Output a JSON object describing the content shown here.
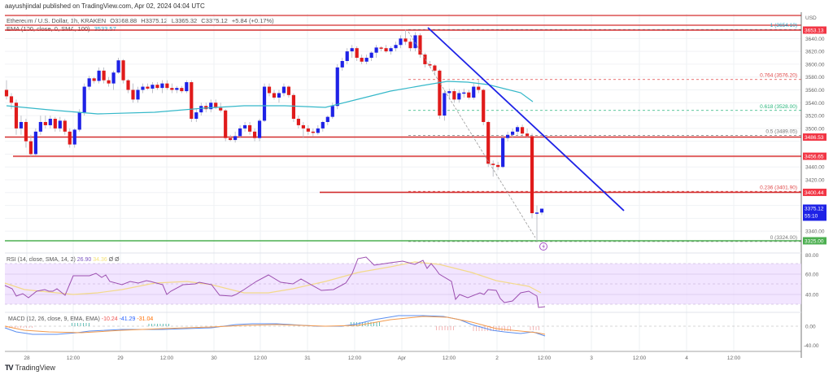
{
  "header": {
    "published": "aayushjindal published on TradingView.com, Apr 02, 2024 04:04 UTC"
  },
  "legend": {
    "symbol": "Ethereum / U.S. Dollar, 1h, KRAKEN",
    "open": "O3368.88",
    "high": "H3375.12",
    "low": "L3365.32",
    "close": "C3375.12",
    "change": "+5.84 (+0.17%)",
    "ema_label": "EMA (100, close, 0, SMA, 100)",
    "ema_value": "3533.57"
  },
  "rsi_legend": {
    "label": "RSI (14, close, SMA, 14, 2)",
    "value": "26.90",
    "ma_value": "34.36",
    "extra1": "Ø",
    "extra2": "Ø"
  },
  "macd_legend": {
    "label": "MACD (12, 26, close, 9, EMA, EMA)",
    "hist": "-10.24",
    "macd": "-41.29",
    "signal": "-31.04"
  },
  "price_axis": {
    "currency": "USD",
    "ticks": [
      "3640.00",
      "3620.00",
      "3600.00",
      "3580.00",
      "3560.00",
      "3540.00",
      "3520.00",
      "3500.00",
      "3440.00",
      "3420.00",
      "3340.00"
    ],
    "tags": [
      {
        "value": "3653.13",
        "color": "#f23645"
      },
      {
        "value": "3486.53",
        "color": "#f23645"
      },
      {
        "value": "3456.65",
        "color": "#f23645"
      },
      {
        "value": "3400.44",
        "color": "#f23645"
      },
      {
        "value": "3375.12",
        "sub": "55:10",
        "color": "#1e22e6"
      },
      {
        "value": "3325.00",
        "color": "#4caf50"
      }
    ]
  },
  "rsi_axis": [
    "60.00",
    "40.00"
  ],
  "macd_axis": [
    "0.00",
    "-40.00"
  ],
  "time_axis": [
    "28",
    "12:00",
    "29",
    "12:00",
    "30",
    "12:00",
    "31",
    "12:00",
    "Apr",
    "12:00",
    "2",
    "12:00",
    "3",
    "12:00",
    "4",
    "12:00"
  ],
  "fib_levels": [
    {
      "label": "1 (3654.10)",
      "color": "#26a6c9"
    },
    {
      "label": "0.764 (3576.20)",
      "color": "#e04848"
    },
    {
      "label": "0.618 (3528.00)",
      "color": "#26b57a"
    },
    {
      "label": "0.5 (3489.05)",
      "color": "#777777"
    },
    {
      "label": "0.236 (3401.90)",
      "color": "#e04848"
    },
    {
      "label": "0 (3324.00)",
      "color": "#777777"
    }
  ],
  "footer": {
    "brand": "TradingView"
  },
  "colors": {
    "bull": "#1e22e6",
    "bear": "#e01b1b",
    "ema": "#35b8c9",
    "trendline": "#1e22e6",
    "support": "#d32f2f",
    "green_support": "#4caf50",
    "rsi": "#9c4fb0",
    "rsi_ma": "#f3d98a",
    "rsi_band": "#eedcff",
    "macd": "#5b8ef0",
    "signal": "#f39a4c"
  },
  "chart_data": {
    "type": "candlestick",
    "title": "Ethereum / U.S. Dollar, 1h, KRAKEN",
    "xlabel": "",
    "ylabel": "USD",
    "ylim": [
      3310,
      3665
    ],
    "x_ticks": [
      "28",
      "12:00",
      "29",
      "12:00",
      "30",
      "12:00",
      "31",
      "12:00",
      "Apr",
      "12:00",
      "2",
      "12:00",
      "3",
      "12:00",
      "4",
      "12:00"
    ],
    "last": {
      "open": 3368.88,
      "high": 3375.12,
      "low": 3365.32,
      "close": 3375.12,
      "change": 5.84,
      "change_pct": 0.17
    },
    "indicators": {
      "ema100": 3533.57,
      "rsi14": 26.9,
      "rsi_ma": 34.36,
      "macd": -41.29,
      "signal": -31.04,
      "hist": -10.24
    },
    "horizontal_levels": [
      3653.13,
      3486.53,
      3456.65,
      3400.44,
      3325.0
    ],
    "fibonacci": [
      {
        "ratio": 1,
        "price": 3654.1
      },
      {
        "ratio": 0.764,
        "price": 3576.2
      },
      {
        "ratio": 0.618,
        "price": 3528.0
      },
      {
        "ratio": 0.5,
        "price": 3489.05
      },
      {
        "ratio": 0.236,
        "price": 3401.9
      },
      {
        "ratio": 0,
        "price": 3324.0
      }
    ],
    "trendline": {
      "from": {
        "x": "Apr 01 00:00",
        "price": 3655
      },
      "to": {
        "x": "Apr 02 18:00",
        "price": 3385
      }
    },
    "candles_approx": [
      [
        3560,
        3575,
        3545,
        3550
      ],
      [
        3550,
        3555,
        3530,
        3540
      ],
      [
        3540,
        3545,
        3490,
        3500
      ],
      [
        3500,
        3520,
        3490,
        3510
      ],
      [
        3510,
        3515,
        3470,
        3480
      ],
      [
        3480,
        3490,
        3456,
        3460
      ],
      [
        3460,
        3500,
        3458,
        3495
      ],
      [
        3495,
        3520,
        3490,
        3510
      ],
      [
        3510,
        3520,
        3500,
        3505
      ],
      [
        3505,
        3520,
        3500,
        3515
      ],
      [
        3515,
        3518,
        3495,
        3500
      ],
      [
        3500,
        3518,
        3495,
        3512
      ],
      [
        3512,
        3515,
        3490,
        3495
      ],
      [
        3495,
        3500,
        3470,
        3475
      ],
      [
        3475,
        3500,
        3470,
        3498
      ],
      [
        3498,
        3530,
        3495,
        3525
      ],
      [
        3525,
        3570,
        3520,
        3565
      ],
      [
        3565,
        3582,
        3560,
        3578
      ],
      [
        3578,
        3580,
        3570,
        3574
      ],
      [
        3574,
        3595,
        3570,
        3590
      ],
      [
        3590,
        3595,
        3570,
        3575
      ],
      [
        3575,
        3580,
        3565,
        3570
      ],
      [
        3570,
        3590,
        3560,
        3587
      ],
      [
        3587,
        3610,
        3585,
        3606
      ],
      [
        3606,
        3608,
        3570,
        3575
      ],
      [
        3575,
        3577,
        3555,
        3560
      ],
      [
        3560,
        3570,
        3540,
        3545
      ],
      [
        3545,
        3565,
        3540,
        3560
      ],
      [
        3560,
        3570,
        3555,
        3565
      ],
      [
        3565,
        3570,
        3560,
        3562
      ],
      [
        3562,
        3572,
        3555,
        3568
      ],
      [
        3568,
        3572,
        3560,
        3563
      ],
      [
        3563,
        3575,
        3555,
        3570
      ],
      [
        3570,
        3575,
        3560,
        3563
      ],
      [
        3563,
        3570,
        3555,
        3560
      ],
      [
        3560,
        3566,
        3555,
        3563
      ],
      [
        3563,
        3566,
        3555,
        3558
      ],
      [
        3558,
        3575,
        3555,
        3572
      ],
      [
        3572,
        3575,
        3510,
        3515
      ],
      [
        3515,
        3530,
        3510,
        3525
      ],
      [
        3525,
        3540,
        3520,
        3535
      ],
      [
        3535,
        3540,
        3525,
        3530
      ],
      [
        3530,
        3545,
        3525,
        3540
      ],
      [
        3540,
        3545,
        3530,
        3532
      ],
      [
        3532,
        3540,
        3525,
        3528
      ],
      [
        3528,
        3530,
        3480,
        3485
      ],
      [
        3485,
        3490,
        3480,
        3482
      ],
      [
        3482,
        3495,
        3478,
        3488
      ],
      [
        3488,
        3505,
        3485,
        3500
      ],
      [
        3500,
        3510,
        3495,
        3505
      ],
      [
        3505,
        3510,
        3490,
        3495
      ],
      [
        3495,
        3500,
        3480,
        3485
      ],
      [
        3485,
        3515,
        3480,
        3512
      ],
      [
        3512,
        3570,
        3510,
        3565
      ],
      [
        3565,
        3570,
        3550,
        3555
      ],
      [
        3555,
        3560,
        3545,
        3548
      ],
      [
        3548,
        3560,
        3540,
        3555
      ],
      [
        3555,
        3570,
        3550,
        3565
      ],
      [
        3565,
        3567,
        3548,
        3552
      ],
      [
        3552,
        3555,
        3510,
        3515
      ],
      [
        3515,
        3520,
        3500,
        3505
      ],
      [
        3505,
        3510,
        3485,
        3500
      ],
      [
        3500,
        3505,
        3490,
        3495
      ],
      [
        3495,
        3500,
        3488,
        3493
      ],
      [
        3493,
        3505,
        3490,
        3500
      ],
      [
        3500,
        3512,
        3495,
        3510
      ],
      [
        3510,
        3520,
        3505,
        3518
      ],
      [
        3518,
        3540,
        3515,
        3535
      ],
      [
        3535,
        3600,
        3530,
        3595
      ],
      [
        3595,
        3610,
        3590,
        3605
      ],
      [
        3605,
        3625,
        3600,
        3620
      ],
      [
        3620,
        3630,
        3610,
        3625
      ],
      [
        3625,
        3628,
        3605,
        3610
      ],
      [
        3610,
        3615,
        3600,
        3604
      ],
      [
        3604,
        3615,
        3600,
        3610
      ],
      [
        3610,
        3620,
        3605,
        3618
      ],
      [
        3618,
        3630,
        3610,
        3626
      ],
      [
        3626,
        3628,
        3620,
        3625
      ],
      [
        3625,
        3630,
        3618,
        3620
      ],
      [
        3620,
        3628,
        3615,
        3625
      ],
      [
        3625,
        3635,
        3620,
        3630
      ],
      [
        3630,
        3645,
        3625,
        3640
      ],
      [
        3640,
        3654,
        3630,
        3635
      ],
      [
        3635,
        3640,
        3620,
        3625
      ],
      [
        3625,
        3650,
        3620,
        3645
      ],
      [
        3645,
        3648,
        3610,
        3615
      ],
      [
        3615,
        3618,
        3595,
        3600
      ],
      [
        3600,
        3605,
        3595,
        3598
      ],
      [
        3598,
        3600,
        3585,
        3590
      ],
      [
        3590,
        3592,
        3515,
        3520
      ],
      [
        3520,
        3560,
        3512,
        3555
      ],
      [
        3555,
        3562,
        3545,
        3558
      ],
      [
        3558,
        3562,
        3540,
        3545
      ],
      [
        3545,
        3560,
        3540,
        3555
      ],
      [
        3555,
        3562,
        3548,
        3556
      ],
      [
        3556,
        3560,
        3545,
        3548
      ],
      [
        3548,
        3570,
        3545,
        3565
      ],
      [
        3565,
        3575,
        3555,
        3560
      ],
      [
        3560,
        3562,
        3505,
        3510
      ],
      [
        3510,
        3512,
        3440,
        3445
      ],
      [
        3445,
        3450,
        3425,
        3443
      ],
      [
        3443,
        3448,
        3435,
        3440
      ],
      [
        3440,
        3490,
        3438,
        3485
      ],
      [
        3485,
        3495,
        3480,
        3490
      ],
      [
        3490,
        3500,
        3485,
        3495
      ],
      [
        3495,
        3505,
        3490,
        3502
      ],
      [
        3502,
        3506,
        3488,
        3492
      ],
      [
        3492,
        3500,
        3485,
        3488
      ],
      [
        3488,
        3492,
        3360,
        3368
      ],
      [
        3368,
        3380,
        3324,
        3369
      ],
      [
        3369,
        3375,
        3365,
        3375
      ]
    ]
  }
}
